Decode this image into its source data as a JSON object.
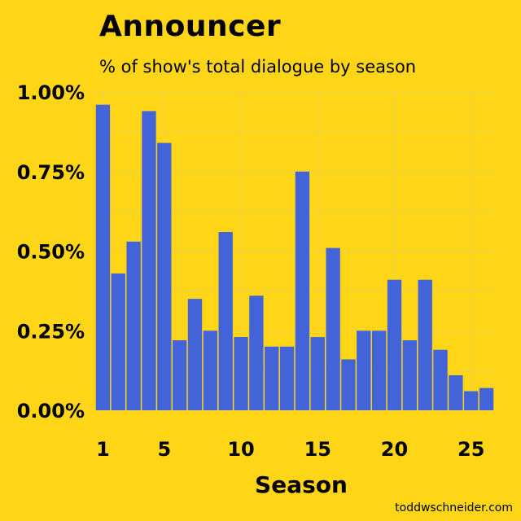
{
  "title": "Announcer",
  "subtitle": "% of show's total dialogue by season",
  "credit": "toddwschneider.com",
  "colors": {
    "background": "#FED617",
    "bar": "#4363D8",
    "grid": "#E6D36A"
  },
  "chart_data": {
    "type": "bar",
    "title": "Announcer",
    "subtitle": "% of show's total dialogue by season",
    "xlabel": "Season",
    "ylabel": "",
    "x_ticks": [
      1,
      5,
      10,
      15,
      20,
      25
    ],
    "y_ticks": [
      0,
      0.25,
      0.5,
      0.75,
      1.0
    ],
    "y_tick_labels": [
      "0.00%",
      "0.25%",
      "0.50%",
      "0.75%",
      "1.00%"
    ],
    "xlim": [
      0.5,
      26.5
    ],
    "ylim": [
      0,
      1.0
    ],
    "categories": [
      1,
      2,
      3,
      4,
      5,
      6,
      7,
      8,
      9,
      10,
      11,
      12,
      13,
      14,
      15,
      16,
      17,
      18,
      19,
      20,
      21,
      22,
      23,
      24,
      25,
      26
    ],
    "values": [
      0.96,
      0.43,
      0.53,
      0.94,
      0.84,
      0.22,
      0.35,
      0.25,
      0.56,
      0.23,
      0.36,
      0.2,
      0.2,
      0.75,
      0.23,
      0.51,
      0.16,
      0.25,
      0.25,
      0.41,
      0.22,
      0.41,
      0.19,
      0.11,
      0.06,
      0.07
    ],
    "grid": true
  }
}
